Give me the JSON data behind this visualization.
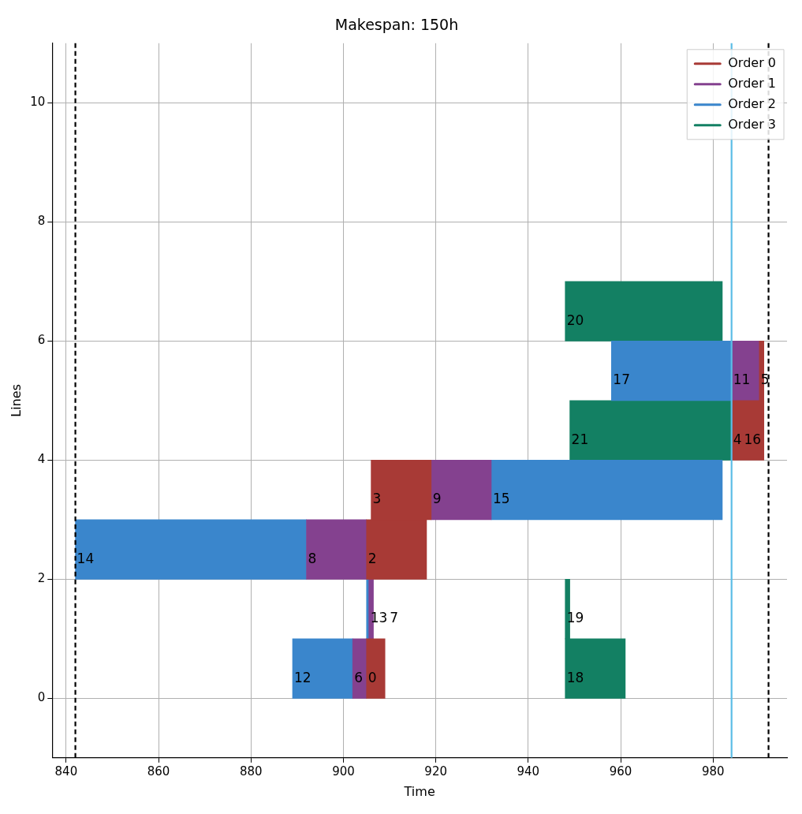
{
  "chart_data": {
    "type": "bar",
    "orientation": "horizontal",
    "title": "Makespan: 150h",
    "xlabel": "Time",
    "ylabel": "Lines",
    "xlim": [
      837,
      996
    ],
    "xticks": [
      840,
      860,
      880,
      900,
      920,
      940,
      960,
      980
    ],
    "ylim": [
      -1,
      11
    ],
    "yticks": [
      0,
      2,
      4,
      6,
      8,
      10
    ],
    "grid": true,
    "legend": "top right",
    "series": [
      {
        "name": "Order 0",
        "color": "#a83a36",
        "x": [
          0.5,
          2.5,
          3.5,
          4.5,
          5.5
        ],
        "base": [
          905,
          905,
          906,
          984,
          990
        ],
        "values": [
          4,
          13,
          13,
          7,
          1
        ]
      },
      {
        "name": "Order 1",
        "color": "#84418f",
        "x": [
          0.5,
          1.5,
          2.5,
          3.5,
          5.5
        ],
        "base": [
          902,
          905.5,
          892,
          919,
          984
        ],
        "values": [
          3,
          1,
          13,
          13,
          6
        ]
      },
      {
        "name": "Order 2",
        "color": "#3a86cc",
        "x": [
          0.5,
          1.5,
          2.5,
          3.5,
          5.5
        ],
        "base": [
          889,
          905,
          842,
          932,
          958
        ],
        "values": [
          13,
          0.5,
          50,
          50,
          26
        ]
      },
      {
        "name": "Order 3",
        "color": "#138063",
        "x": [
          0.5,
          1.5,
          4.5,
          6.5
        ],
        "base": [
          948,
          948,
          949,
          948
        ],
        "values": [
          13,
          1,
          35,
          34
        ]
      }
    ],
    "annotations": [
      {
        "text": "0",
        "x": 905,
        "y": 0.5
      },
      {
        "text": "2",
        "x": 905,
        "y": 2.5
      },
      {
        "text": "3",
        "x": 906,
        "y": 3.5
      },
      {
        "text": "4",
        "x": 984,
        "y": 4.5
      },
      {
        "text": "16",
        "x": 984,
        "y": 4.5
      },
      {
        "text": "5",
        "x": 990,
        "y": 5.5
      },
      {
        "text": "6",
        "x": 902,
        "y": 0.5
      },
      {
        "text": "13",
        "x": 905.5,
        "y": 1.5
      },
      {
        "text": "8",
        "x": 892,
        "y": 2.5
      },
      {
        "text": "9",
        "x": 919,
        "y": 3.5
      },
      {
        "text": "11",
        "x": 984,
        "y": 5.5
      },
      {
        "text": "12",
        "x": 889,
        "y": 0.5
      },
      {
        "text": "7",
        "x": 905,
        "y": 1.5
      },
      {
        "text": "14",
        "x": 842,
        "y": 2.5
      },
      {
        "text": "15",
        "x": 932,
        "y": 3.5
      },
      {
        "text": "17",
        "x": 958,
        "y": 5.5
      },
      {
        "text": "18",
        "x": 948,
        "y": 0.5
      },
      {
        "text": "19",
        "x": 948,
        "y": 1.5
      },
      {
        "text": "21",
        "x": 949,
        "y": 4.5
      },
      {
        "text": "20",
        "x": 948,
        "y": 6.5
      }
    ],
    "ref_lines": [
      {
        "axis": "x",
        "value": 842,
        "color": "#000000",
        "line_style": "dashed"
      },
      {
        "axis": "x",
        "value": 992,
        "color": "#000000",
        "line_style": "dashed"
      },
      {
        "axis": "x",
        "value": 984,
        "color": "#5bbde6",
        "line_style": "solid"
      }
    ]
  }
}
